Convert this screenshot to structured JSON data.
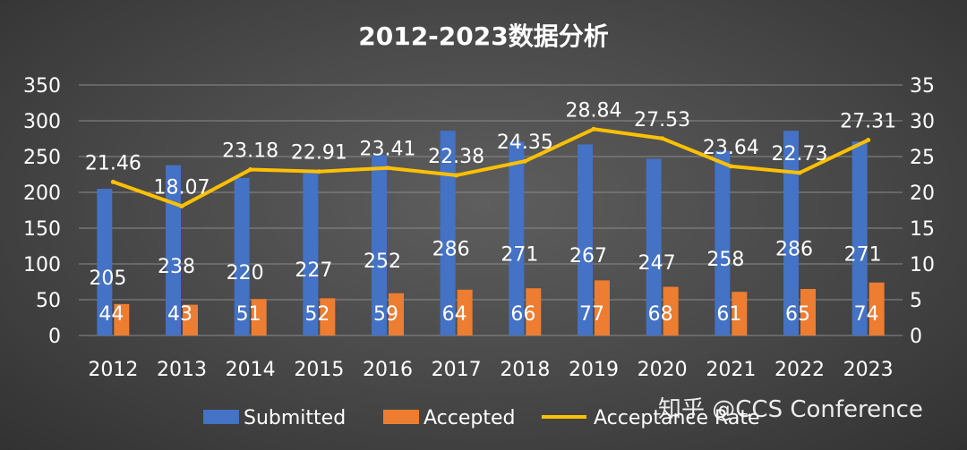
{
  "chart_data": {
    "type": "bar",
    "title": "2012-2023数据分析",
    "categories": [
      "2012",
      "2013",
      "2014",
      "2015",
      "2016",
      "2017",
      "2018",
      "2019",
      "2020",
      "2021",
      "2022",
      "2023"
    ],
    "series": [
      {
        "name": "Submitted",
        "type": "bar",
        "axis": "left",
        "color": "#4472c4",
        "values": [
          205,
          238,
          220,
          227,
          252,
          286,
          271,
          267,
          247,
          258,
          286,
          271
        ]
      },
      {
        "name": "Accepted",
        "type": "bar",
        "axis": "left",
        "color": "#ed7d31",
        "values": [
          44,
          43,
          51,
          52,
          59,
          64,
          66,
          77,
          68,
          61,
          65,
          74
        ]
      },
      {
        "name": "Acceptance Rate",
        "type": "line",
        "axis": "right",
        "color": "#ffc000",
        "values": [
          21.46,
          18.07,
          23.18,
          22.91,
          23.41,
          22.38,
          24.35,
          28.84,
          27.53,
          23.64,
          22.73,
          27.31
        ]
      }
    ],
    "left_axis": {
      "ylim": [
        0,
        350
      ],
      "ticks": [
        "0",
        "50",
        "100",
        "150",
        "200",
        "250",
        "300",
        "350"
      ]
    },
    "right_axis": {
      "ylim": [
        0,
        35
      ],
      "ticks": [
        "0",
        "5",
        "10",
        "15",
        "20",
        "25",
        "30",
        "35"
      ]
    },
    "grid": true,
    "legend_position": "bottom"
  },
  "watermark": {
    "text": "知乎 @CCS Conference"
  }
}
